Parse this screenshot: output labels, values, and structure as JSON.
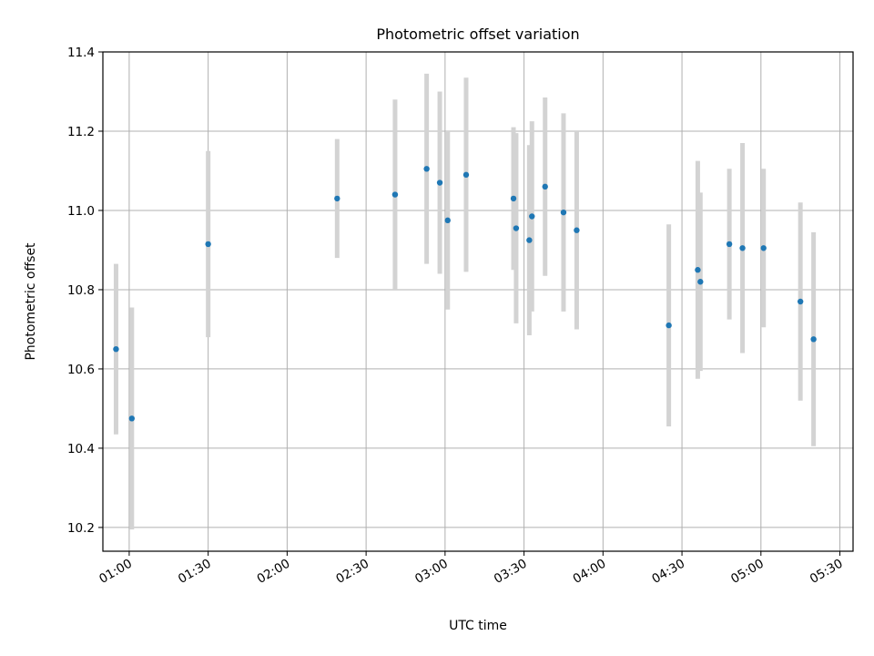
{
  "chart_data": {
    "type": "scatter",
    "title": "Photometric offset variation",
    "xlabel": "UTC time",
    "ylabel": "Photometric offset",
    "x_unit": "UTC",
    "xlim": [
      "00:50",
      "05:35"
    ],
    "ylim": [
      10.14,
      11.4
    ],
    "x_ticks": [
      "01:00",
      "01:30",
      "02:00",
      "02:30",
      "03:00",
      "03:30",
      "04:00",
      "04:30",
      "05:00",
      "05:30"
    ],
    "y_ticks": [
      "10.2",
      "10.4",
      "10.6",
      "10.8",
      "11.0",
      "11.2",
      "11.4"
    ],
    "grid": true,
    "colors": {
      "marker": "#1f77b4",
      "errorbar": "#d3d3d3"
    },
    "points": [
      {
        "x": "00:55",
        "y": 10.65,
        "err": 0.215
      },
      {
        "x": "01:01",
        "y": 10.475,
        "err": 0.28
      },
      {
        "x": "01:30",
        "y": 10.915,
        "err": 0.235
      },
      {
        "x": "02:19",
        "y": 11.03,
        "err": 0.15
      },
      {
        "x": "02:41",
        "y": 11.04,
        "err": 0.24
      },
      {
        "x": "02:53",
        "y": 11.105,
        "err": 0.24
      },
      {
        "x": "02:58",
        "y": 11.07,
        "err": 0.23
      },
      {
        "x": "03:01",
        "y": 10.975,
        "err": 0.225
      },
      {
        "x": "03:08",
        "y": 11.09,
        "err": 0.245
      },
      {
        "x": "03:26",
        "y": 11.03,
        "err": 0.18
      },
      {
        "x": "03:27",
        "y": 10.955,
        "err": 0.24
      },
      {
        "x": "03:32",
        "y": 10.925,
        "err": 0.24
      },
      {
        "x": "03:33",
        "y": 10.985,
        "err": 0.24
      },
      {
        "x": "03:38",
        "y": 11.06,
        "err": 0.225
      },
      {
        "x": "03:45",
        "y": 10.995,
        "err": 0.25
      },
      {
        "x": "03:50",
        "y": 10.95,
        "err": 0.25
      },
      {
        "x": "04:25",
        "y": 10.71,
        "err": 0.255
      },
      {
        "x": "04:36",
        "y": 10.85,
        "err": 0.275
      },
      {
        "x": "04:37",
        "y": 10.82,
        "err": 0.225
      },
      {
        "x": "04:48",
        "y": 10.915,
        "err": 0.19
      },
      {
        "x": "04:53",
        "y": 10.905,
        "err": 0.265
      },
      {
        "x": "05:01",
        "y": 10.905,
        "err": 0.2
      },
      {
        "x": "05:15",
        "y": 10.77,
        "err": 0.25
      },
      {
        "x": "05:20",
        "y": 10.675,
        "err": 0.27
      }
    ]
  }
}
